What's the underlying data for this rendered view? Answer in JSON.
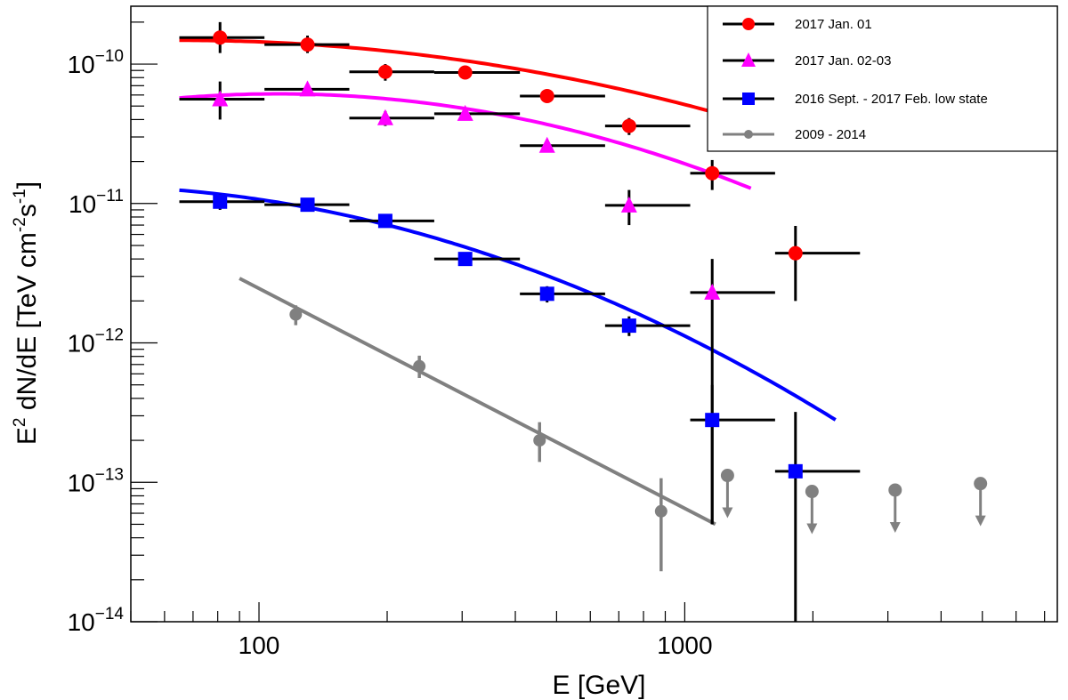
{
  "chart_data": {
    "type": "scatter",
    "title": "",
    "xlabel": "E [GeV]",
    "ylabel": "E² dN/dE [TeV cm⁻²s⁻¹]",
    "ylabel_parts": {
      "prefix": "E",
      "sup1": "2",
      "mid": " dN/dE [TeV cm",
      "sup2": "-2",
      "s": "s",
      "sup3": "-1",
      "suffix": "]"
    },
    "x_scale": "log",
    "y_scale": "log",
    "xlim": [
      50,
      7500
    ],
    "ylim": [
      1e-14,
      2.6e-10
    ],
    "x_tick_labels": [
      {
        "value": 100,
        "label": "100"
      },
      {
        "value": 1000,
        "label": "1000"
      }
    ],
    "y_tick_labels": [
      {
        "value": 1e-10,
        "base": "10",
        "exp": "−10"
      },
      {
        "value": 1e-11,
        "base": "10",
        "exp": "−11"
      },
      {
        "value": 1e-12,
        "base": "10",
        "exp": "−12"
      },
      {
        "value": 1e-13,
        "base": "10",
        "exp": "−13"
      },
      {
        "value": 1e-14,
        "base": "10",
        "exp": "−14"
      }
    ],
    "legend_position": "top-right",
    "series": [
      {
        "name": "2017 Jan. 01",
        "color": "#ff0000",
        "marker": "circle",
        "points": [
          {
            "x": 81,
            "y": 1.55e-10,
            "xlo": 65,
            "xhi": 103,
            "ylo": 1.2e-10,
            "yhi": 2e-10
          },
          {
            "x": 130,
            "y": 1.38e-10,
            "xlo": 103,
            "xhi": 163,
            "ylo": 1.2e-10,
            "yhi": 1.6e-10
          },
          {
            "x": 198,
            "y": 8.8e-11,
            "xlo": 163,
            "xhi": 258,
            "ylo": 7.6e-11,
            "yhi": 1e-10
          },
          {
            "x": 305,
            "y": 8.7e-11,
            "xlo": 258,
            "xhi": 410,
            "ylo": 8e-11,
            "yhi": 9.5e-11
          },
          {
            "x": 475,
            "y": 5.9e-11,
            "xlo": 410,
            "xhi": 650,
            "ylo": 5.4e-11,
            "yhi": 6.4e-11
          },
          {
            "x": 740,
            "y": 3.6e-11,
            "xlo": 650,
            "xhi": 1030,
            "ylo": 3.1e-11,
            "yhi": 4.1e-11
          },
          {
            "x": 1160,
            "y": 1.65e-11,
            "xlo": 1030,
            "xhi": 1630,
            "ylo": 1.25e-11,
            "yhi": 2.05e-11
          },
          {
            "x": 1820,
            "y": 4.4e-12,
            "xlo": 1630,
            "xhi": 2580,
            "ylo": 2e-12,
            "yhi": 6.9e-12
          }
        ],
        "fit": {
          "e0": 100,
          "n0": 1.444e-10,
          "alpha": 0.12,
          "beta": 0.33,
          "xmin": 65,
          "xmax": 2260
        }
      },
      {
        "name": "2017 Jan. 02-03",
        "color": "#ff00ff",
        "marker": "triangle",
        "points": [
          {
            "x": 81,
            "y": 5.6e-11,
            "xlo": 65,
            "xhi": 103,
            "ylo": 4e-11,
            "yhi": 7.5e-11
          },
          {
            "x": 130,
            "y": 6.6e-11,
            "xlo": 103,
            "xhi": 163,
            "ylo": 6e-11,
            "yhi": 7.2e-11
          },
          {
            "x": 198,
            "y": 4.1e-11,
            "xlo": 163,
            "xhi": 258,
            "ylo": 3.6e-11,
            "yhi": 4.6e-11
          },
          {
            "x": 305,
            "y": 4.4e-11,
            "xlo": 258,
            "xhi": 410,
            "ylo": 4e-11,
            "yhi": 4.8e-11
          },
          {
            "x": 475,
            "y": 2.6e-11,
            "xlo": 410,
            "xhi": 650,
            "ylo": 2.35e-11,
            "yhi": 2.85e-11
          },
          {
            "x": 740,
            "y": 9.7e-12,
            "xlo": 650,
            "xhi": 1030,
            "ylo": 7e-12,
            "yhi": 1.25e-11
          },
          {
            "x": 1160,
            "y": 2.3e-12,
            "xlo": 1030,
            "xhi": 1630,
            "ylo": 5e-14,
            "yhi": 4e-12
          }
        ],
        "fit": {
          "e0": 100,
          "n0": 6.1e-11,
          "alpha": -0.05,
          "beta": 0.55,
          "xmin": 65,
          "xmax": 1430
        }
      },
      {
        "name": "2016 Sept. - 2017 Feb. low state",
        "color": "#0000ff",
        "marker": "square",
        "points": [
          {
            "x": 81,
            "y": 1.03e-11,
            "xlo": 65,
            "xhi": 103,
            "ylo": 9e-12,
            "yhi": 1.16e-11
          },
          {
            "x": 130,
            "y": 9.8e-12,
            "xlo": 103,
            "xhi": 163,
            "ylo": 9.3e-12,
            "yhi": 1.03e-11
          },
          {
            "x": 198,
            "y": 7.5e-12,
            "xlo": 163,
            "xhi": 258,
            "ylo": 7e-12,
            "yhi": 8e-12
          },
          {
            "x": 305,
            "y": 4e-12,
            "xlo": 258,
            "xhi": 410,
            "ylo": 3.7e-12,
            "yhi": 4.3e-12
          },
          {
            "x": 475,
            "y": 2.25e-12,
            "xlo": 410,
            "xhi": 650,
            "ylo": 1.95e-12,
            "yhi": 2.55e-12
          },
          {
            "x": 740,
            "y": 1.33e-12,
            "xlo": 650,
            "xhi": 1030,
            "ylo": 1.12e-12,
            "yhi": 1.55e-12
          },
          {
            "x": 1160,
            "y": 2.8e-13,
            "xlo": 1030,
            "xhi": 1630,
            "ylo": 5e-14,
            "yhi": 5e-13
          },
          {
            "x": 1820,
            "y": 1.2e-13,
            "xlo": 1630,
            "xhi": 2580,
            "ylo": 1e-14,
            "yhi": 3.2e-13
          }
        ],
        "fit": {
          "e0": 100,
          "n0": 1.07e-11,
          "alpha": 0.45,
          "beta": 0.53,
          "xmin": 65,
          "xmax": 2260
        }
      },
      {
        "name": "2009 - 2014",
        "color": "#808080",
        "marker": "circle-small",
        "points": [
          {
            "x": 122,
            "y": 1.6e-12,
            "ylo": 1.34e-12,
            "yhi": 1.86e-12
          },
          {
            "x": 238,
            "y": 6.8e-13,
            "ylo": 5.6e-13,
            "yhi": 8.1e-13
          },
          {
            "x": 456,
            "y": 2e-13,
            "ylo": 1.4e-13,
            "yhi": 2.7e-13
          },
          {
            "x": 880,
            "y": 6.2e-14,
            "ylo": 2.3e-14,
            "yhi": 1.07e-13
          }
        ],
        "upper_limits": [
          {
            "x": 1260,
            "y": 1.12e-13
          },
          {
            "x": 1990,
            "y": 8.6e-14
          },
          {
            "x": 3120,
            "y": 8.8e-14
          },
          {
            "x": 4950,
            "y": 9.8e-14
          }
        ],
        "fit": {
          "type": "powerlaw",
          "x1": 90,
          "y1": 2.9e-12,
          "x2": 1180,
          "y2": 5e-14
        }
      }
    ]
  }
}
